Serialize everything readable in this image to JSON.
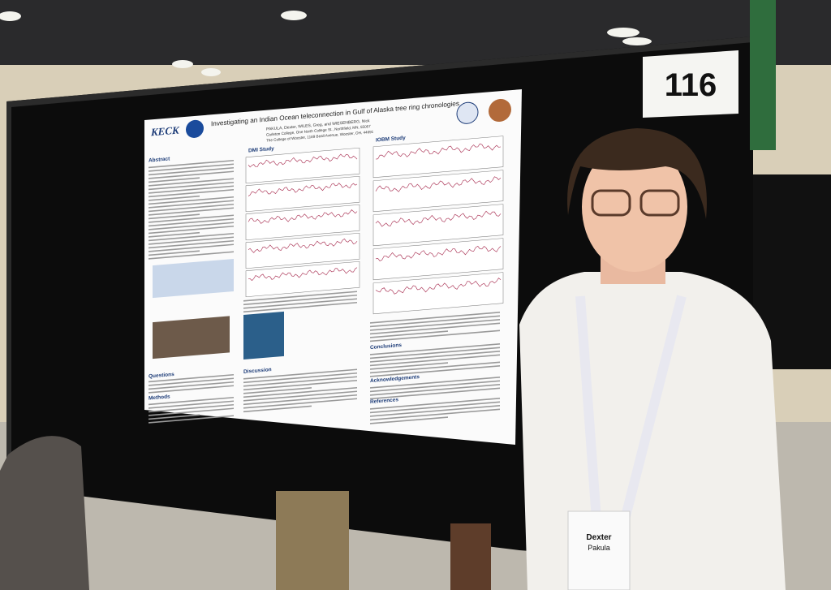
{
  "sign": {
    "number": "116"
  },
  "poster": {
    "logo": "KECK",
    "title": "Investigating an Indian Ocean teleconnection in Gulf of Alaska tree ring chronologies",
    "authors": "PAKULA, Dexter, WILES, Greg, and WIESENBERG, Nick",
    "affiliations": [
      "Carleton College, One North College St., Northfield, MN, 55057",
      "The College of Wooster, 1189 Beall Avenue, Wooster, OH, 44691"
    ],
    "sections": {
      "abstract": "Abstract",
      "dmi": "DMI Study",
      "iobm": "IOBM Study",
      "questions": "Questions",
      "methods": "Methods",
      "discussion": "Discussion",
      "conclusions": "Conclusions",
      "acknowledgements": "Acknowledgements",
      "references": "References"
    }
  },
  "badge": {
    "first_name": "Dexter",
    "last_name": "Pakula"
  }
}
